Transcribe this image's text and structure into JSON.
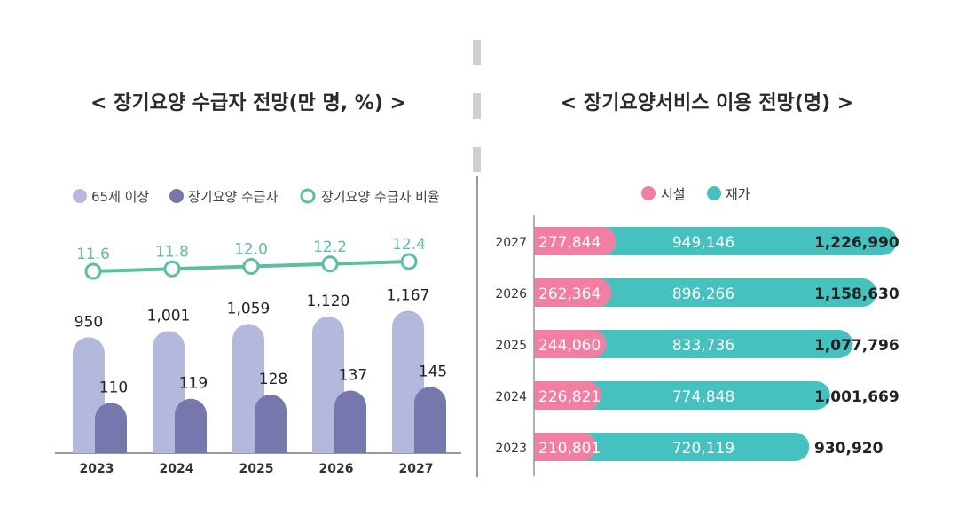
{
  "left_title": "< 장기요양 수급자 전망(만 명, %) >",
  "right_title": "< 장기요양서비스 이용 전망(명) >",
  "colors": {
    "elderly": "#b3b8dc",
    "recipients": "#7577ad",
    "ratio": "#5cbf9f",
    "facility": "#f27fa2",
    "home": "#45c2c0"
  },
  "chart_data": [
    {
      "type": "bar",
      "title": "< 장기요양 수급자 전망(만 명, %) >",
      "categories": [
        "2023",
        "2024",
        "2025",
        "2026",
        "2027"
      ],
      "legend_position": "top",
      "series": [
        {
          "name": "65세 이상",
          "type": "bar",
          "values": [
            950,
            1001,
            1059,
            1120,
            1167
          ],
          "labels": [
            "950",
            "1,001",
            "1,059",
            "1,120",
            "1,167"
          ]
        },
        {
          "name": "장기요양 수급자",
          "type": "bar",
          "values": [
            110,
            119,
            128,
            137,
            145
          ],
          "labels": [
            "110",
            "119",
            "128",
            "137",
            "145"
          ]
        },
        {
          "name": "장기요양 수급자 비율",
          "type": "line",
          "values": [
            11.6,
            11.8,
            12.0,
            12.2,
            12.4
          ],
          "labels": [
            "11.6",
            "11.8",
            "12.0",
            "12.2",
            "12.4"
          ]
        }
      ],
      "grid": false
    },
    {
      "type": "bar",
      "orientation": "horizontal",
      "stacked": true,
      "title": "< 장기요양서비스 이용 전망(명) >",
      "categories": [
        "2027",
        "2026",
        "2025",
        "2024",
        "2023"
      ],
      "legend_position": "top",
      "series": [
        {
          "name": "시설",
          "values": [
            277844,
            262364,
            244060,
            226821,
            210801
          ],
          "labels": [
            "277,844",
            "262,364",
            "244,060",
            "226,821",
            "210,801"
          ]
        },
        {
          "name": "재가",
          "values": [
            949146,
            896266,
            833736,
            774848,
            720119
          ],
          "labels": [
            "949,146",
            "896,266",
            "833,736",
            "774,848",
            "720,119"
          ]
        }
      ],
      "totals": [
        1226990,
        1158630,
        1077796,
        1001669,
        930920
      ],
      "total_labels": [
        "1,226,990",
        "1,158,630",
        "1,077,796",
        "1,001,669",
        "930,920"
      ],
      "grid": false
    }
  ]
}
